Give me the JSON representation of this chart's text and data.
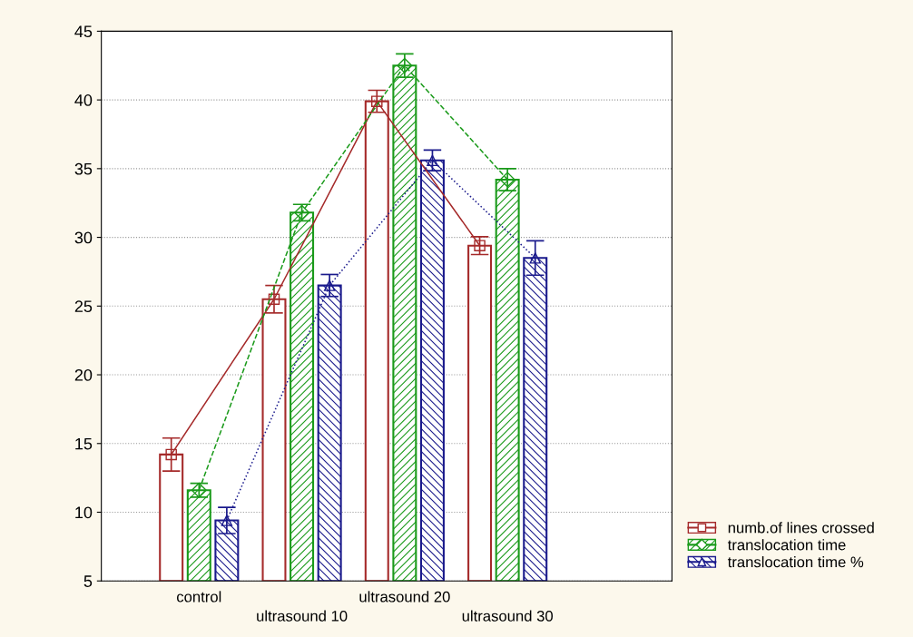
{
  "chart_data": {
    "type": "bar",
    "categories": [
      "control",
      "ultrasound 10",
      "ultrasound 20",
      "ultrasound 30"
    ],
    "series": [
      {
        "name": "numb.of lines crossed",
        "color": "#a52a2a",
        "values": [
          14.2,
          25.5,
          39.9,
          29.4
        ],
        "errors": [
          1.2,
          1.0,
          0.8,
          0.65
        ]
      },
      {
        "name": "translocation time",
        "color": "#1a9a1a",
        "values": [
          11.6,
          31.8,
          42.5,
          34.2
        ],
        "errors": [
          0.5,
          0.6,
          0.85,
          0.8
        ]
      },
      {
        "name": "translocation time %",
        "color": "#1a1a8c",
        "values": [
          9.4,
          26.5,
          35.6,
          28.5
        ],
        "errors": [
          0.95,
          0.8,
          0.75,
          1.25
        ]
      },
      {
        "type": "line",
        "color": "#a52a2a",
        "values": [
          14.2,
          25.5,
          39.9,
          29.4
        ],
        "marker": "square",
        "line_style": "solid"
      },
      {
        "type": "line",
        "color": "#1a9a1a",
        "values": [
          11.6,
          31.8,
          42.5,
          34.2
        ],
        "marker": "diamond",
        "line_style": "dashed"
      },
      {
        "type": "line",
        "color": "#1a1a8c",
        "values": [
          9.4,
          26.5,
          35.6,
          28.5
        ],
        "marker": "triangle",
        "line_style": "dotted"
      }
    ],
    "ylim": [
      5,
      45
    ],
    "yticks": [
      5,
      10,
      15,
      20,
      25,
      30,
      35,
      40,
      45
    ],
    "grid": "y",
    "legend": "bottom right"
  }
}
